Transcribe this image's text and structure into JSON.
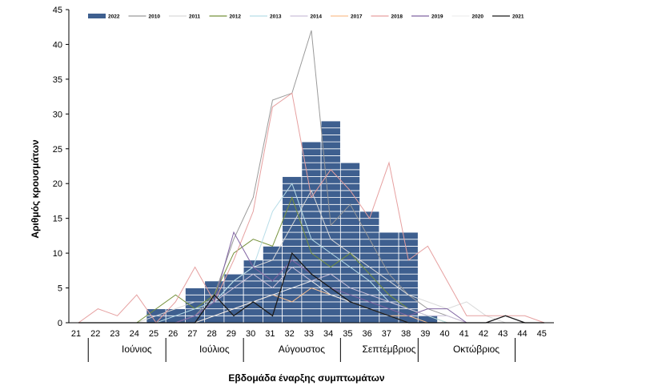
{
  "chart_data": {
    "type": "bar",
    "xlabel": "Εβδομάδα έναρξης συμπτωμάτων",
    "ylabel": "Αριθμός κρουσμάτων",
    "ylim": [
      0,
      45
    ],
    "yticks": [
      0,
      5,
      10,
      15,
      20,
      25,
      30,
      35,
      40,
      45
    ],
    "x": [
      21,
      22,
      23,
      24,
      25,
      26,
      27,
      28,
      29,
      30,
      31,
      32,
      33,
      34,
      35,
      36,
      37,
      38,
      39,
      40,
      41,
      42,
      43,
      44,
      45
    ],
    "grid": false,
    "legend_position": "top",
    "months": [
      {
        "label": "Ιούνιος",
        "from": 22,
        "to": 26
      },
      {
        "label": "Ιούλιος",
        "from": 26,
        "to": 30
      },
      {
        "label": "Αύγουστος",
        "from": 30,
        "to": 35
      },
      {
        "label": "Σεπτέμβριος",
        "from": 35,
        "to": 39
      },
      {
        "label": "Οκτώβριος",
        "from": 39,
        "to": 44
      }
    ],
    "bars": {
      "name": "2022",
      "color": "#3e5f8f",
      "values": [
        0,
        0,
        0,
        0,
        2,
        2,
        5,
        6,
        7,
        9,
        11,
        21,
        26,
        29,
        23,
        16,
        13,
        13,
        1,
        0,
        0,
        0,
        0,
        0,
        0
      ]
    },
    "series": [
      {
        "name": "2010",
        "color": "#9a9a9a",
        "values": [
          0,
          0,
          0,
          0,
          0,
          0,
          1,
          4,
          12,
          18,
          32,
          33,
          42,
          14,
          17,
          12,
          7,
          4,
          2,
          1,
          0,
          0,
          0,
          0,
          0
        ]
      },
      {
        "name": "2011",
        "color": "#d9d9d9",
        "values": [
          0,
          0,
          0,
          0,
          1,
          2,
          3,
          3,
          6,
          8,
          9,
          14,
          19,
          12,
          10,
          8,
          6,
          4,
          3,
          2,
          3,
          1,
          0,
          0,
          0
        ]
      },
      {
        "name": "2012",
        "color": "#76923c",
        "values": [
          0,
          0,
          0,
          0,
          2,
          4,
          2,
          4,
          10,
          12,
          11,
          18,
          10,
          8,
          10,
          7,
          4,
          2,
          1,
          0,
          0,
          0,
          0,
          0,
          0
        ]
      },
      {
        "name": "2013",
        "color": "#b7dde8",
        "values": [
          0,
          0,
          0,
          0,
          0,
          1,
          2,
          3,
          6,
          8,
          16,
          20,
          12,
          10,
          8,
          6,
          3,
          2,
          1,
          0,
          0,
          0,
          0,
          0,
          0
        ]
      },
      {
        "name": "2014",
        "color": "#ccc1da",
        "values": [
          0,
          0,
          0,
          0,
          0,
          0,
          1,
          3,
          5,
          7,
          5,
          8,
          6,
          7,
          5,
          4,
          3,
          2,
          1,
          1,
          0,
          0,
          0,
          0,
          0
        ]
      },
      {
        "name": "2017",
        "color": "#fac090",
        "values": [
          0,
          0,
          0,
          0,
          0,
          0,
          0,
          1,
          2,
          3,
          4,
          3,
          5,
          4,
          3,
          2,
          1,
          1,
          0,
          0,
          0,
          0,
          0,
          0,
          0
        ]
      },
      {
        "name": "2018",
        "color": "#e6a0a0",
        "values": [
          0,
          2,
          1,
          4,
          0,
          3,
          8,
          3,
          9,
          16,
          31,
          33,
          18,
          22,
          19,
          15,
          23,
          9,
          11,
          6,
          1,
          1,
          1,
          1,
          0
        ]
      },
      {
        "name": "2019",
        "color": "#8064a2",
        "values": [
          0,
          0,
          0,
          0,
          0,
          0,
          1,
          3,
          13,
          8,
          6,
          9,
          7,
          5,
          4,
          3,
          2,
          1,
          2,
          2,
          0,
          0,
          1,
          0,
          0
        ]
      },
      {
        "name": "2020",
        "color": "#eeeeee",
        "values": [
          0,
          0,
          0,
          0,
          0,
          0,
          0,
          1,
          2,
          3,
          4,
          5,
          6,
          4,
          3,
          2,
          1,
          0,
          0,
          0,
          0,
          0,
          0,
          0,
          0
        ]
      },
      {
        "name": "2021",
        "color": "#1a1a1a",
        "values": [
          0,
          0,
          0,
          0,
          0,
          0,
          0,
          4,
          1,
          3,
          1,
          10,
          7,
          5,
          3,
          2,
          1,
          0,
          0,
          0,
          0,
          0,
          1,
          0,
          0
        ]
      }
    ]
  }
}
